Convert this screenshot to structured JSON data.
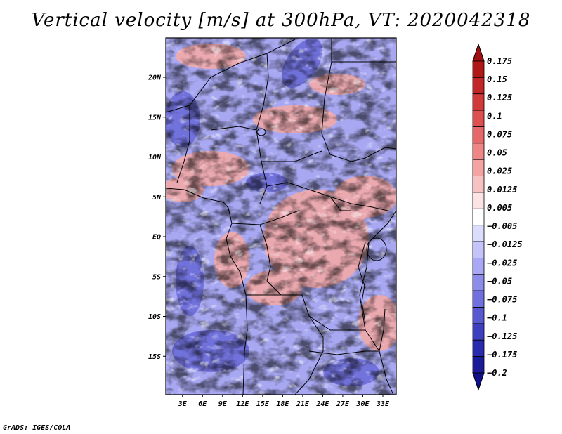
{
  "chart_data": {
    "type": "heatmap",
    "title": "Vertical velocity [m/s] at 300hPa, VT: 2020042318",
    "xlabel": "",
    "ylabel": "",
    "x_ticks": [
      "3E",
      "6E",
      "9E",
      "12E",
      "15E",
      "18E",
      "21E",
      "24E",
      "27E",
      "30E",
      "33E"
    ],
    "y_ticks": [
      "20N",
      "15N",
      "10N",
      "5N",
      "EQ",
      "5S",
      "10S",
      "15S"
    ],
    "colorbar": {
      "labels": [
        "0.175",
        "0.15",
        "0.125",
        "0.1",
        "0.075",
        "0.05",
        "0.025",
        "0.0125",
        "0.005",
        "-0.005",
        "-0.0125",
        "-0.025",
        "-0.05",
        "-0.075",
        "-0.1",
        "-0.125",
        "-0.175",
        "-0.2"
      ],
      "colors": [
        "#b01818",
        "#c22626",
        "#d23a3a",
        "#de5050",
        "#e66868",
        "#ee8686",
        "#f4a2a2",
        "#f8c2c2",
        "#fce4e4",
        "#ffffff",
        "#dcdcfc",
        "#c4c4fa",
        "#a8a8f4",
        "#8c8cea",
        "#7070de",
        "#5858d0",
        "#3e3ec0",
        "#2a2aae",
        "#1a1a9a"
      ],
      "top_arrow_color": "#a01010",
      "bottom_arrow_color": "#10108a"
    },
    "field_colors": {
      "land_border": "#000000",
      "blue_base": "#9a9af0",
      "red_base": "#f0a0a0"
    }
  },
  "credit": "GrADS: IGES/COLA"
}
